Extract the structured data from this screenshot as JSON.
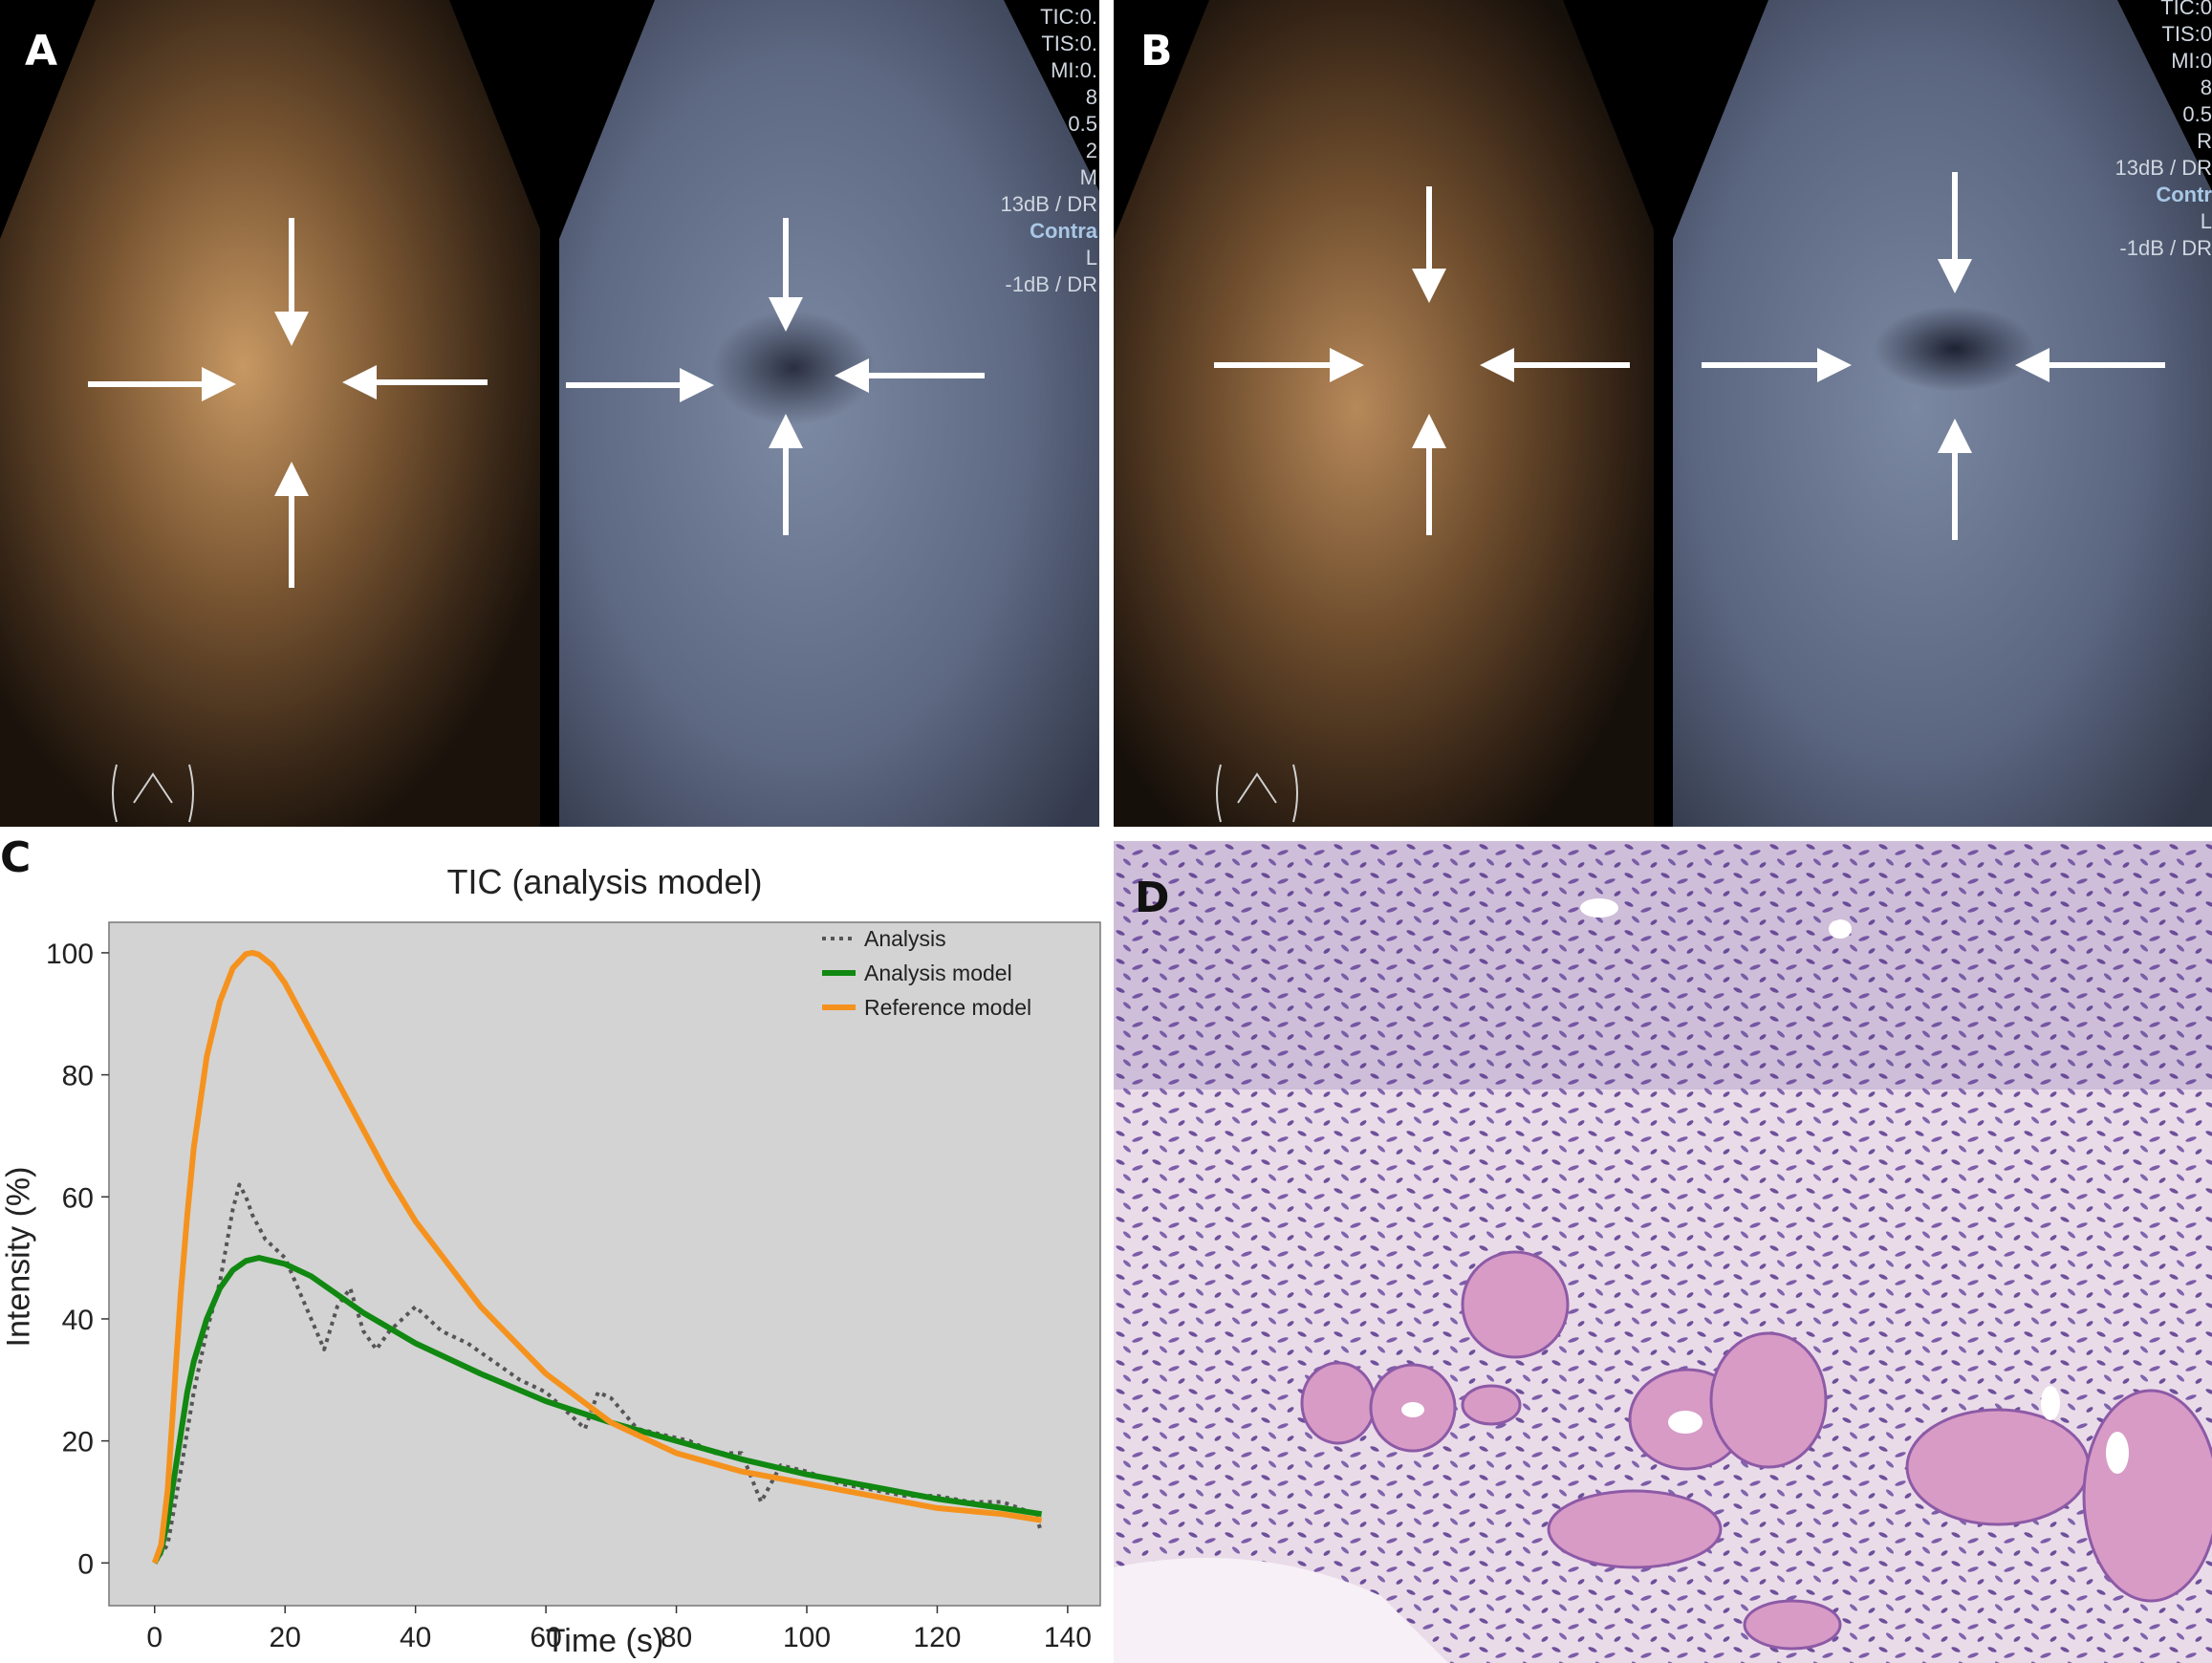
{
  "panels": {
    "a": {
      "letter": "A"
    },
    "b": {
      "letter": "B"
    },
    "c": {
      "letter": "C"
    },
    "d": {
      "letter": "D"
    }
  },
  "overlay": {
    "a_lines": [
      "TIC:0.",
      "TIS:0.",
      "MI:0.",
      "8",
      "0.5",
      "2",
      "M",
      "13dB / DR",
      "Contra",
      "L",
      "-1dB / DR"
    ],
    "b_lines": [
      "TIC:0",
      "TIS:0",
      "MI:0",
      "8",
      "0.5",
      "R",
      "13dB / DR",
      "Contr",
      "L",
      "-1dB / DR"
    ]
  },
  "chart_data": {
    "type": "line",
    "title": "TIC (analysis model)",
    "xlabel": "Time (s)",
    "ylabel": "Intensity (%)",
    "xlim": [
      -7,
      145
    ],
    "ylim": [
      -7,
      105
    ],
    "xticks": [
      0,
      20,
      40,
      60,
      80,
      100,
      120,
      140
    ],
    "yticks": [
      0,
      20,
      40,
      60,
      80,
      100
    ],
    "grid": false,
    "legend_position": "top-right",
    "background": "#d3d3d3",
    "series": [
      {
        "name": "Analysis",
        "style": "dotted",
        "color": "#555555",
        "x": [
          0,
          2,
          4,
          6,
          8,
          10,
          11,
          12,
          13,
          14,
          15,
          16,
          17,
          18,
          19,
          20,
          22,
          24,
          26,
          28,
          30,
          32,
          34,
          36,
          38,
          40,
          44,
          48,
          52,
          56,
          60,
          64,
          66,
          68,
          70,
          74,
          78,
          82,
          86,
          90,
          93,
          96,
          100,
          105,
          110,
          115,
          120,
          125,
          130,
          135,
          136
        ],
        "y": [
          0,
          3,
          15,
          28,
          38,
          46,
          52,
          58,
          62,
          60,
          57,
          55,
          53,
          52,
          51,
          50,
          45,
          40,
          35,
          42,
          45,
          38,
          35,
          38,
          40,
          42,
          38,
          36,
          33,
          30,
          28,
          24,
          22,
          28,
          27,
          22,
          21,
          20,
          18,
          18,
          10,
          16,
          15,
          13,
          12,
          11,
          11,
          10,
          10,
          8,
          5
        ]
      },
      {
        "name": "Analysis model",
        "style": "solid",
        "color": "#118811",
        "x": [
          0,
          1,
          2,
          3,
          4,
          5,
          6,
          8,
          10,
          12,
          14,
          16,
          18,
          20,
          24,
          28,
          32,
          36,
          40,
          50,
          60,
          70,
          80,
          90,
          100,
          110,
          120,
          130,
          136
        ],
        "y": [
          0,
          2,
          7,
          14,
          21,
          28,
          33,
          40,
          45,
          48,
          49.5,
          50,
          49.5,
          49,
          47,
          44,
          41,
          38.5,
          36,
          31,
          26.5,
          23,
          20,
          17,
          14.5,
          12.5,
          10.5,
          9,
          8
        ]
      },
      {
        "name": "Reference model",
        "style": "solid",
        "color": "#f5921e",
        "x": [
          0,
          1,
          2,
          3,
          4,
          5,
          6,
          8,
          10,
          12,
          14,
          15,
          16,
          18,
          20,
          24,
          28,
          32,
          36,
          40,
          50,
          60,
          70,
          80,
          90,
          100,
          110,
          120,
          130,
          136
        ],
        "y": [
          0,
          3,
          12,
          28,
          44,
          57,
          68,
          83,
          92,
          97.5,
          99.8,
          100,
          99.7,
          98,
          95,
          87,
          79,
          71,
          63,
          56,
          42,
          31,
          23,
          18,
          15,
          13,
          11,
          9,
          8,
          7
        ]
      }
    ]
  }
}
